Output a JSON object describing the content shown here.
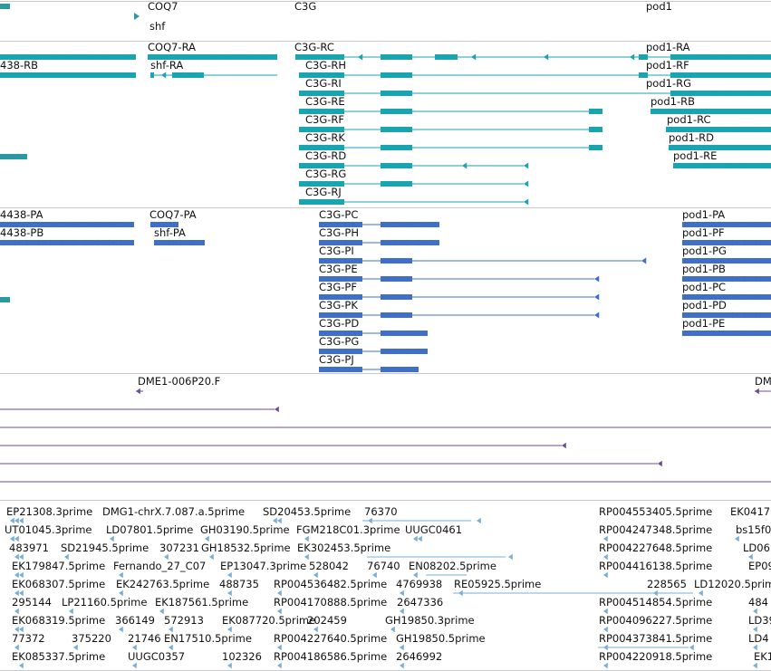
{
  "colors": {
    "gene": "#2a9aa0",
    "transcript": "#1aa3b0",
    "protein": "#3f6fc8",
    "clone": "#6a4a9c",
    "est": "#7aaed6",
    "separator": "#c8c8c8"
  },
  "gene_track": {
    "labels": [
      "COQ7",
      "C3G",
      "pod1",
      "shf"
    ]
  },
  "transcript_track": {
    "labels": [
      "438-RB",
      "COQ7-RA",
      "shf-RA",
      "C3G-RC",
      "C3G-RH",
      "C3G-RI",
      "C3G-RE",
      "C3G-RF",
      "C3G-RK",
      "C3G-RD",
      "C3G-RG",
      "C3G-RJ",
      "pod1-RA",
      "pod1-RF",
      "pod1-RG",
      "pod1-RB",
      "pod1-RC",
      "pod1-RD",
      "pod1-RE"
    ]
  },
  "protein_track": {
    "labels": [
      "4438-PA",
      "4438-PB",
      "COQ7-PA",
      "shf-PA",
      "C3G-PC",
      "C3G-PH",
      "C3G-PI",
      "C3G-PE",
      "C3G-PF",
      "C3G-PK",
      "C3G-PD",
      "C3G-PG",
      "C3G-PJ",
      "pod1-PA",
      "pod1-PF",
      "pod1-PG",
      "pod1-PB",
      "pod1-PC",
      "pod1-PD",
      "pod1-PE"
    ]
  },
  "clone_track": {
    "labels": [
      "DME1-006P20.F",
      "DME"
    ]
  },
  "est_track": {
    "labels": [
      "EP21308.3prime",
      "DMG1-chrX.7.087.a.5prime",
      "SD20453.5prime",
      "76370",
      "RP004553405.5prime",
      "EK0417",
      "UT01045.3prime",
      "LD07801.5prime",
      "GH03190.5prime",
      "FGM218C01.3prime",
      "UUGC0461",
      "RP004247348.5prime",
      "bs15f0",
      "483971",
      "SD21945.5prime",
      "307231",
      "GH18532.5prime",
      "EK302453.5prime",
      "RP004227648.5prime",
      "LD06",
      "EK179847.5prime",
      "Fernando_27_C07",
      "EP13047.3prime",
      "528042",
      "76740",
      "EN08202.5prime",
      "RP004416138.5prime",
      "EP09",
      "EK068307.5prime",
      "EK242763.5prime",
      "488735",
      "RP004536482.5prime",
      "4769938",
      "RE05925.5prime",
      "228565",
      "LD12020.5prime",
      "295144",
      "LP21160.5prime",
      "EK187561.5prime",
      "RP004170888.5prime",
      "2647336",
      "RP004514854.5prime",
      "484",
      "EK068319.5prime",
      "366149",
      "572913",
      "EK087720.5prime",
      "202459",
      "GH19850.3prime",
      "RP004096227.5prime",
      "LD39",
      "77372",
      "375220",
      "21746",
      "EN17510.5prime",
      "RP004227640.5prime",
      "GH19850.5prime",
      "RP004373841.5prime",
      "LD4",
      "EK085337.5prime",
      "UUGC0357",
      "102326",
      "RP004186586.5prime",
      "2646992",
      "RP004220918.5prime",
      "EK1"
    ]
  }
}
